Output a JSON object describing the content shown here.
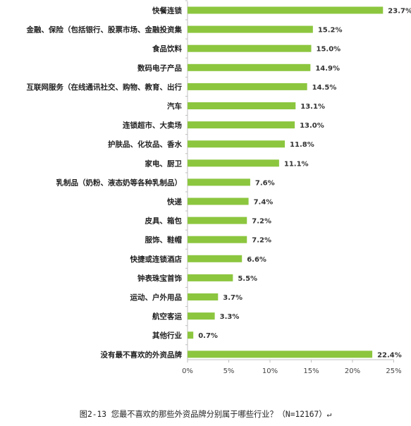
{
  "caption": "图2-13 您最不喜欢的那些外资品牌分别属于哪些行业？（N=12167）↵",
  "chart_data": {
    "type": "bar",
    "orientation": "horizontal",
    "bar_color": "#8cc63f",
    "categories": [
      "快餐连锁",
      "金融、保险（包括银行、股票市场、金融投资集",
      "食品饮料",
      "数码电子产品",
      "互联网服务（在线通讯社交、购物、教育、出行",
      "汽车",
      "连锁超市、大卖场",
      "护肤品、化妆品、香水",
      "家电、厨卫",
      "乳制品（奶粉、液态奶等各种乳制品）",
      "快递",
      "皮具、箱包",
      "服饰、鞋帽",
      "快捷或连锁酒店",
      "钟表珠宝首饰",
      "运动、户外用品",
      "航空客运",
      "其他行业",
      "没有最不喜欢的外资品牌"
    ],
    "values": [
      23.7,
      15.2,
      15.0,
      14.9,
      14.5,
      13.1,
      13.0,
      11.8,
      11.1,
      7.6,
      7.4,
      7.2,
      7.2,
      6.6,
      5.5,
      3.7,
      3.3,
      0.7,
      22.4
    ],
    "value_labels": [
      "23.7%",
      "15.2%",
      "15.0%",
      "14.9%",
      "14.5%",
      "13.1%",
      "13.0%",
      "11.8%",
      "11.1%",
      "7.6%",
      "7.4%",
      "7.2%",
      "7.2%",
      "6.6%",
      "5.5%",
      "3.7%",
      "3.3%",
      "0.7%",
      "22.4%"
    ],
    "xlim": [
      0,
      25
    ],
    "xticks": [
      "0%",
      "5%",
      "10%",
      "15%",
      "20%",
      "25%"
    ],
    "grid": false,
    "legend": "none"
  }
}
